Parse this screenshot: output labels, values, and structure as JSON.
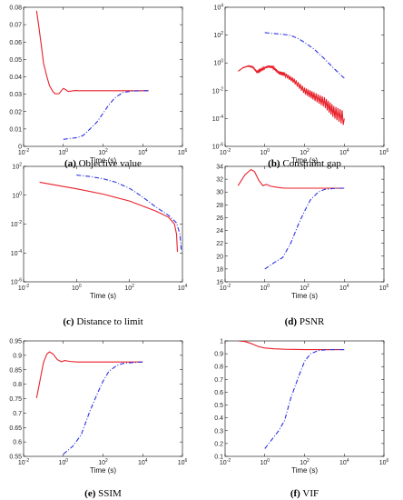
{
  "figure": {
    "panels": [
      {
        "letter": "(a)",
        "caption": "Objective value",
        "chart_data": {
          "type": "line",
          "xlabel": "Time (s)",
          "xscale": "log",
          "xlim": [
            0.01,
            1000000
          ],
          "xticks": [
            "10-2",
            "100",
            "102",
            "104",
            "106"
          ],
          "yscale": "linear",
          "ylim": [
            0,
            0.08
          ],
          "yticks": [
            "0",
            "0.01",
            "0.02",
            "0.03",
            "0.04",
            "0.05",
            "0.06",
            "0.07",
            "0.08"
          ],
          "series": [
            {
              "color": "#e8202a",
              "style": "solid",
              "points": [
                [
                  0.045,
                  0.078
                ],
                [
                  0.06,
                  0.068
                ],
                [
                  0.08,
                  0.057
                ],
                [
                  0.1,
                  0.048
                ],
                [
                  0.15,
                  0.04
                ],
                [
                  0.2,
                  0.035
                ],
                [
                  0.3,
                  0.0315
                ],
                [
                  0.4,
                  0.0302
                ],
                [
                  0.6,
                  0.0303
                ],
                [
                  0.8,
                  0.032
                ],
                [
                  1.0,
                  0.0333
                ],
                [
                  1.3,
                  0.0327
                ],
                [
                  1.7,
                  0.0316
                ],
                [
                  2.5,
                  0.0318
                ],
                [
                  4,
                  0.0321
                ],
                [
                  6,
                  0.032
                ],
                [
                  10,
                  0.032
                ],
                [
                  100,
                  0.032
                ],
                [
                  1000,
                  0.032
                ],
                [
                  10000,
                  0.032
                ],
                [
                  20000,
                  0.032
                ]
              ]
            },
            {
              "color": "#2b32e0",
              "style": "dashdot",
              "points": [
                [
                  1,
                  0.004
                ],
                [
                  2,
                  0.0045
                ],
                [
                  5,
                  0.005
                ],
                [
                  10,
                  0.0063
                ],
                [
                  20,
                  0.0095
                ],
                [
                  50,
                  0.014
                ],
                [
                  100,
                  0.019
                ],
                [
                  200,
                  0.024
                ],
                [
                  400,
                  0.028
                ],
                [
                  1000,
                  0.031
                ],
                [
                  3000,
                  0.0318
                ],
                [
                  10000,
                  0.032
                ],
                [
                  20000,
                  0.032
                ]
              ]
            }
          ]
        }
      },
      {
        "letter": "(b)",
        "caption": "Constraint gap",
        "chart_data": {
          "type": "line",
          "xlabel": "Time (s)",
          "xscale": "log",
          "xlim": [
            0.01,
            1000000
          ],
          "xticks": [
            "10-2",
            "100",
            "102",
            "104",
            "106"
          ],
          "yscale": "log",
          "ylim": [
            1e-06,
            10000
          ],
          "yticks": [
            "10-6",
            "10-4",
            "10-2",
            "100",
            "102",
            "104"
          ],
          "series": [
            {
              "color": "#2b32e0",
              "style": "dashdot",
              "points": [
                [
                  1,
                  150
                ],
                [
                  3,
                  130
                ],
                [
                  10,
                  110
                ],
                [
                  20,
                  95
                ],
                [
                  50,
                  55
                ],
                [
                  100,
                  30
                ],
                [
                  300,
                  10
                ],
                [
                  1000,
                  2
                ],
                [
                  3000,
                  0.4
                ],
                [
                  10000,
                  0.08
                ]
              ]
            },
            {
              "color": "#e8202a",
              "style": "solid",
              "noisy": true,
              "points": [
                [
                  0.045,
                  0.25
                ],
                [
                  0.08,
                  0.45
                ],
                [
                  0.15,
                  0.6
                ],
                [
                  0.25,
                  0.5
                ],
                [
                  0.4,
                  0.22
                ],
                [
                  0.6,
                  0.3
                ],
                [
                  1,
                  0.45
                ],
                [
                  1.5,
                  0.55
                ],
                [
                  2.5,
                  0.5
                ],
                [
                  5,
                  0.2
                ],
                [
                  10,
                  0.15
                ],
                [
                  30,
                  0.05
                ],
                [
                  100,
                  0.01
                ],
                [
                  300,
                  0.004
                ],
                [
                  1000,
                  0.0015
                ],
                [
                  3000,
                  0.0003
                ],
                [
                  10000,
                  0.0001
                ]
              ]
            }
          ]
        }
      },
      {
        "letter": "(c)",
        "caption": "Distance to limit",
        "chart_data": {
          "type": "line",
          "xlabel": "Time (s)",
          "xscale": "log",
          "xlim": [
            0.01,
            10000
          ],
          "xticks": [
            "10-2",
            "100",
            "102",
            "104"
          ],
          "yscale": "log",
          "ylim": [
            1e-06,
            100
          ],
          "yticks": [
            "10-6",
            "10-4",
            "10-2",
            "100",
            "102"
          ],
          "series": [
            {
              "color": "#e8202a",
              "style": "solid",
              "points": [
                [
                  0.04,
                  8
                ],
                [
                  0.1,
                  5.8
                ],
                [
                  1,
                  2.8
                ],
                [
                  10,
                  1.2
                ],
                [
                  100,
                  0.4
                ],
                [
                  1000,
                  0.08
                ],
                [
                  3000,
                  0.03
                ],
                [
                  5000,
                  0.01
                ],
                [
                  6000,
                  0.002
                ],
                [
                  6500,
                  0.00012
                ]
              ]
            },
            {
              "color": "#2b32e0",
              "style": "dashdot",
              "points": [
                [
                  1,
                  25
                ],
                [
                  3,
                  20
                ],
                [
                  10,
                  14
                ],
                [
                  30,
                  8
                ],
                [
                  100,
                  3
                ],
                [
                  300,
                  0.8
                ],
                [
                  1000,
                  0.15
                ],
                [
                  3000,
                  0.04
                ],
                [
                  6000,
                  0.012
                ],
                [
                  8000,
                  0.002
                ],
                [
                  9000,
                  0.00015
                ]
              ]
            }
          ]
        }
      },
      {
        "letter": "(d)",
        "caption": "PSNR",
        "chart_data": {
          "type": "line",
          "xlabel": "Time (s)",
          "xscale": "log",
          "xlim": [
            0.01,
            1000000
          ],
          "xticks": [
            "10-2",
            "100",
            "102",
            "104",
            "106"
          ],
          "yscale": "linear",
          "ylim": [
            16,
            34
          ],
          "yticks": [
            "16",
            "18",
            "20",
            "22",
            "24",
            "26",
            "28",
            "30",
            "32",
            "34"
          ],
          "series": [
            {
              "color": "#e8202a",
              "style": "solid",
              "points": [
                [
                  0.045,
                  31
                ],
                [
                  0.1,
                  32.7
                ],
                [
                  0.2,
                  33.5
                ],
                [
                  0.3,
                  33.2
                ],
                [
                  0.5,
                  31.8
                ],
                [
                  0.8,
                  31.0
                ],
                [
                  1.2,
                  31.2
                ],
                [
                  2,
                  30.9
                ],
                [
                  5,
                  30.7
                ],
                [
                  10,
                  30.6
                ],
                [
                  100,
                  30.6
                ],
                [
                  1000,
                  30.6
                ],
                [
                  10000,
                  30.6
                ]
              ]
            },
            {
              "color": "#2b32e0",
              "style": "dashdot",
              "points": [
                [
                  1,
                  18
                ],
                [
                  3,
                  19
                ],
                [
                  8,
                  19.8
                ],
                [
                  20,
                  22
                ],
                [
                  50,
                  25
                ],
                [
                  100,
                  27
                ],
                [
                  200,
                  28.8
                ],
                [
                  500,
                  30
                ],
                [
                  1000,
                  30.4
                ],
                [
                  3000,
                  30.55
                ],
                [
                  10000,
                  30.6
                ]
              ]
            }
          ]
        }
      },
      {
        "letter": "(e)",
        "caption": "SSIM",
        "chart_data": {
          "type": "line",
          "xlabel": "Time (s)",
          "xscale": "log",
          "xlim": [
            0.01,
            1000000
          ],
          "xticks": [
            "10-2",
            "100",
            "102",
            "104",
            "106"
          ],
          "yscale": "linear",
          "ylim": [
            0.55,
            0.95
          ],
          "yticks": [
            "0.55",
            "0.6",
            "0.65",
            "0.7",
            "0.75",
            "0.8",
            "0.85",
            "0.9",
            "0.95"
          ],
          "series": [
            {
              "color": "#e8202a",
              "style": "solid",
              "points": [
                [
                  0.045,
                  0.752
                ],
                [
                  0.07,
                  0.82
                ],
                [
                  0.1,
                  0.875
                ],
                [
                  0.15,
                  0.905
                ],
                [
                  0.2,
                  0.912
                ],
                [
                  0.3,
                  0.905
                ],
                [
                  0.5,
                  0.885
                ],
                [
                  0.8,
                  0.878
                ],
                [
                  1.2,
                  0.882
                ],
                [
                  2,
                  0.879
                ],
                [
                  5,
                  0.877
                ],
                [
                  10,
                  0.877
                ],
                [
                  100,
                  0.877
                ],
                [
                  1000,
                  0.877
                ],
                [
                  10000,
                  0.877
                ]
              ]
            },
            {
              "color": "#2b32e0",
              "style": "dashdot",
              "points": [
                [
                  1,
                  0.558
                ],
                [
                  3,
                  0.585
                ],
                [
                  8,
                  0.625
                ],
                [
                  20,
                  0.7
                ],
                [
                  50,
                  0.765
                ],
                [
                  100,
                  0.81
                ],
                [
                  200,
                  0.845
                ],
                [
                  500,
                  0.865
                ],
                [
                  1000,
                  0.872
                ],
                [
                  3000,
                  0.875
                ],
                [
                  10000,
                  0.877
                ]
              ]
            }
          ]
        }
      },
      {
        "letter": "(f)",
        "caption": "VIF",
        "chart_data": {
          "type": "line",
          "xlabel": "Time (s)",
          "xscale": "log",
          "xlim": [
            0.01,
            1000000
          ],
          "xticks": [
            "10-2",
            "100",
            "102",
            "104",
            "106"
          ],
          "yscale": "linear",
          "ylim": [
            0.1,
            1.0
          ],
          "yticks": [
            "0.1",
            "0.2",
            "0.3",
            "0.4",
            "0.5",
            "0.6",
            "0.7",
            "0.8",
            "0.9",
            "1"
          ],
          "series": [
            {
              "color": "#e8202a",
              "style": "solid",
              "points": [
                [
                  0.045,
                  1.0
                ],
                [
                  0.1,
                  0.995
                ],
                [
                  0.2,
                  0.98
                ],
                [
                  0.5,
                  0.955
                ],
                [
                  1,
                  0.945
                ],
                [
                  3,
                  0.938
                ],
                [
                  10,
                  0.935
                ],
                [
                  100,
                  0.932
                ],
                [
                  1000,
                  0.932
                ],
                [
                  10000,
                  0.932
                ]
              ]
            },
            {
              "color": "#2b32e0",
              "style": "dashdot",
              "points": [
                [
                  1,
                  0.16
                ],
                [
                  2,
                  0.22
                ],
                [
                  5,
                  0.3
                ],
                [
                  10,
                  0.38
                ],
                [
                  20,
                  0.55
                ],
                [
                  50,
                  0.72
                ],
                [
                  100,
                  0.84
                ],
                [
                  200,
                  0.9
                ],
                [
                  500,
                  0.925
                ],
                [
                  1000,
                  0.93
                ],
                [
                  3000,
                  0.932
                ],
                [
                  10000,
                  0.932
                ]
              ]
            }
          ]
        }
      }
    ]
  }
}
